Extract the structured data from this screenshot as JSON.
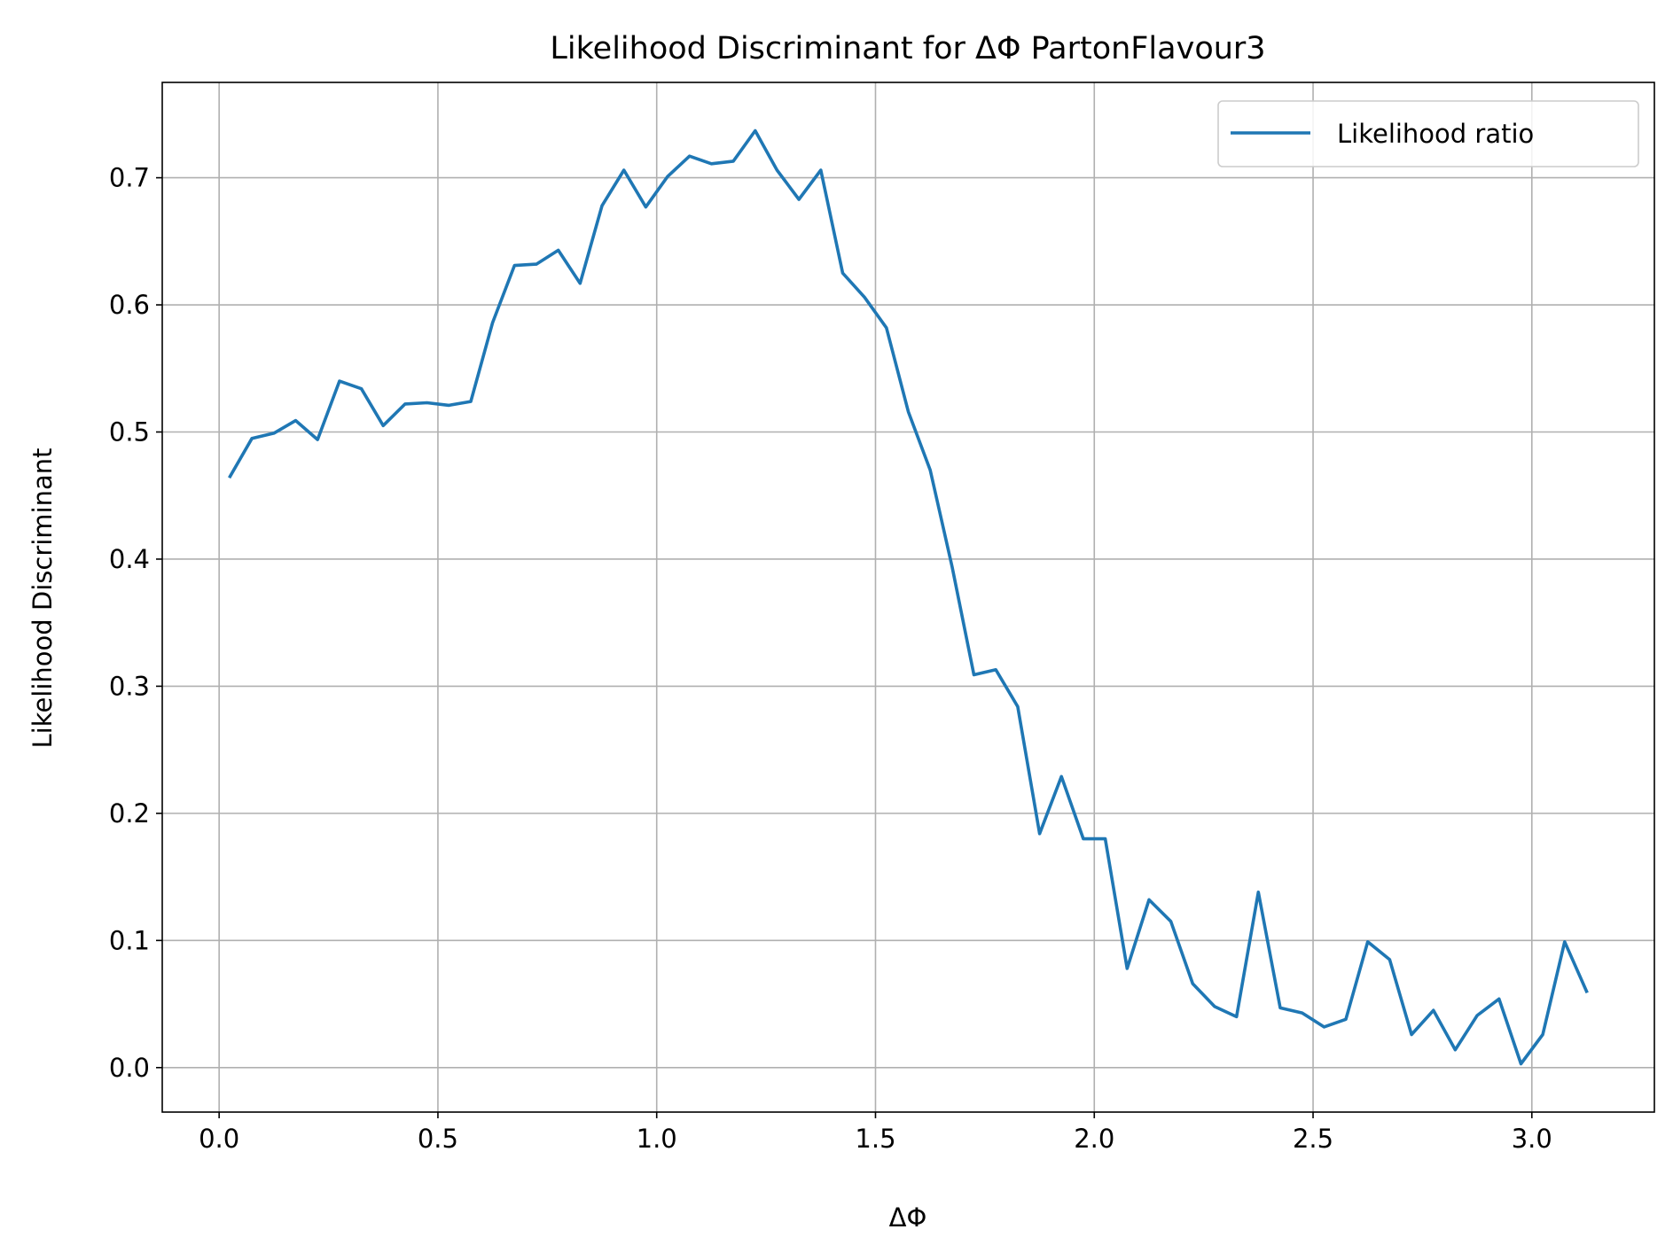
{
  "chart_data": {
    "type": "line",
    "title": "Likelihood Discriminant for ΔΦ PartonFlavour3",
    "xlabel": "ΔΦ",
    "ylabel": "Likelihood Discriminant",
    "xlim": [
      -0.13,
      3.28
    ],
    "ylim": [
      -0.035,
      0.775
    ],
    "xticks": [
      0.0,
      0.5,
      1.0,
      1.5,
      2.0,
      2.5,
      3.0
    ],
    "xtick_labels": [
      "0.0",
      "0.5",
      "1.0",
      "1.5",
      "2.0",
      "2.5",
      "3.0"
    ],
    "yticks": [
      0.0,
      0.1,
      0.2,
      0.3,
      0.4,
      0.5,
      0.6,
      0.7
    ],
    "ytick_labels": [
      "0.0",
      "0.1",
      "0.2",
      "0.3",
      "0.4",
      "0.5",
      "0.6",
      "0.7"
    ],
    "grid": true,
    "legend_position": "top-right",
    "series": [
      {
        "name": "Likelihood ratio",
        "color": "#1f77b4",
        "x": [
          0.025,
          0.075,
          0.125,
          0.175,
          0.225,
          0.275,
          0.325,
          0.375,
          0.425,
          0.475,
          0.525,
          0.575,
          0.625,
          0.675,
          0.725,
          0.775,
          0.825,
          0.875,
          0.925,
          0.975,
          1.025,
          1.075,
          1.125,
          1.175,
          1.225,
          1.275,
          1.325,
          1.375,
          1.425,
          1.475,
          1.525,
          1.575,
          1.625,
          1.675,
          1.725,
          1.775,
          1.825,
          1.875,
          1.925,
          1.975,
          2.025,
          2.075,
          2.125,
          2.175,
          2.225,
          2.275,
          2.325,
          2.375,
          2.425,
          2.475,
          2.525,
          2.575,
          2.625,
          2.675,
          2.725,
          2.775,
          2.825,
          2.875,
          2.925,
          2.975,
          3.025,
          3.075,
          3.125
        ],
        "y": [
          0.465,
          0.495,
          0.499,
          0.509,
          0.494,
          0.54,
          0.534,
          0.505,
          0.522,
          0.523,
          0.521,
          0.524,
          0.586,
          0.631,
          0.632,
          0.643,
          0.617,
          0.678,
          0.706,
          0.677,
          0.701,
          0.717,
          0.711,
          0.713,
          0.737,
          0.706,
          0.683,
          0.706,
          0.625,
          0.606,
          0.582,
          0.516,
          0.47,
          0.394,
          0.309,
          0.313,
          0.284,
          0.184,
          0.229,
          0.18,
          0.18,
          0.078,
          0.132,
          0.115,
          0.066,
          0.048,
          0.04,
          0.138,
          0.047,
          0.043,
          0.032,
          0.038,
          0.099,
          0.085,
          0.026,
          0.045,
          0.014,
          0.041,
          0.054,
          0.003,
          0.026,
          0.099,
          0.06
        ]
      }
    ]
  }
}
